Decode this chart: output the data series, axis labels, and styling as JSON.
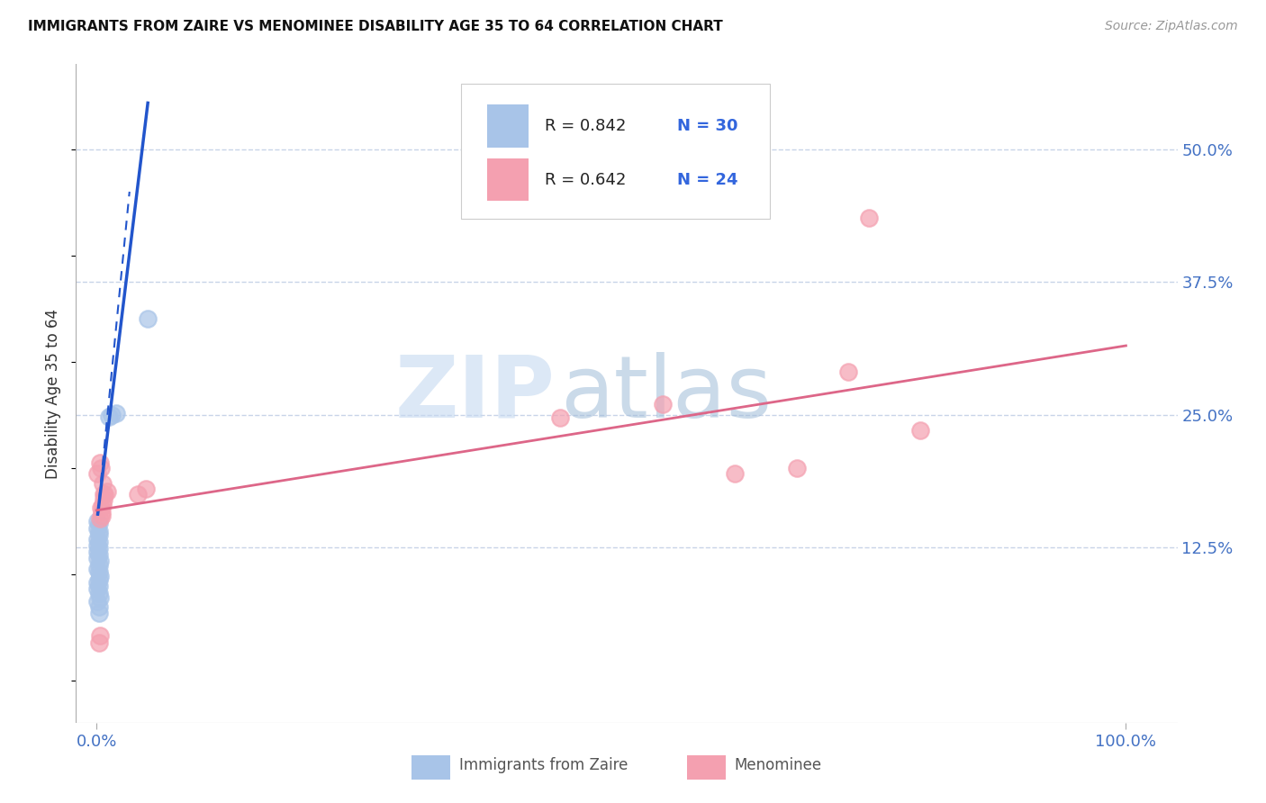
{
  "title": "IMMIGRANTS FROM ZAIRE VS MENOMINEE DISABILITY AGE 35 TO 64 CORRELATION CHART",
  "source": "Source: ZipAtlas.com",
  "ylabel": "Disability Age 35 to 64",
  "ytick_labels": [
    "12.5%",
    "25.0%",
    "37.5%",
    "50.0%"
  ],
  "ytick_values": [
    0.125,
    0.25,
    0.375,
    0.5
  ],
  "legend_blue_r": "R = 0.842",
  "legend_blue_n": "N = 30",
  "legend_pink_r": "R = 0.642",
  "legend_pink_n": "N = 24",
  "blue_color": "#a8c4e8",
  "pink_color": "#f4a0b0",
  "trendline_blue_color": "#2255cc",
  "trendline_pink_color": "#dd6688",
  "blue_scatter": [
    [
      0.001,
      0.15
    ],
    [
      0.002,
      0.148
    ],
    [
      0.001,
      0.143
    ],
    [
      0.002,
      0.14
    ],
    [
      0.002,
      0.137
    ],
    [
      0.001,
      0.133
    ],
    [
      0.002,
      0.13
    ],
    [
      0.001,
      0.127
    ],
    [
      0.002,
      0.124
    ],
    [
      0.001,
      0.121
    ],
    [
      0.002,
      0.118
    ],
    [
      0.001,
      0.115
    ],
    [
      0.003,
      0.112
    ],
    [
      0.002,
      0.108
    ],
    [
      0.001,
      0.105
    ],
    [
      0.002,
      0.102
    ],
    [
      0.003,
      0.098
    ],
    [
      0.002,
      0.095
    ],
    [
      0.001,
      0.092
    ],
    [
      0.002,
      0.089
    ],
    [
      0.001,
      0.086
    ],
    [
      0.002,
      0.082
    ],
    [
      0.003,
      0.078
    ],
    [
      0.001,
      0.074
    ],
    [
      0.002,
      0.069
    ],
    [
      0.002,
      0.063
    ],
    [
      0.015,
      0.25
    ],
    [
      0.019,
      0.251
    ],
    [
      0.012,
      0.248
    ],
    [
      0.05,
      0.34
    ]
  ],
  "pink_scatter": [
    [
      0.001,
      0.195
    ],
    [
      0.003,
      0.205
    ],
    [
      0.004,
      0.2
    ],
    [
      0.005,
      0.158
    ],
    [
      0.003,
      0.152
    ],
    [
      0.006,
      0.185
    ],
    [
      0.007,
      0.175
    ],
    [
      0.004,
      0.162
    ],
    [
      0.005,
      0.155
    ],
    [
      0.008,
      0.175
    ],
    [
      0.01,
      0.178
    ],
    [
      0.006,
      0.165
    ],
    [
      0.007,
      0.17
    ],
    [
      0.04,
      0.175
    ],
    [
      0.048,
      0.18
    ],
    [
      0.45,
      0.247
    ],
    [
      0.55,
      0.26
    ],
    [
      0.62,
      0.195
    ],
    [
      0.68,
      0.2
    ],
    [
      0.73,
      0.29
    ],
    [
      0.8,
      0.235
    ],
    [
      0.75,
      0.435
    ],
    [
      0.003,
      0.042
    ],
    [
      0.002,
      0.035
    ]
  ],
  "blue_trendline_solid": [
    [
      0.001,
      0.155
    ],
    [
      0.05,
      0.545
    ]
  ],
  "blue_trendline_dashed": [
    [
      0.001,
      0.155
    ],
    [
      0.032,
      0.46
    ]
  ],
  "pink_trendline": [
    [
      0.0,
      0.16
    ],
    [
      1.0,
      0.315
    ]
  ],
  "watermark_zip": "ZIP",
  "watermark_atlas": "atlas",
  "background_color": "#ffffff",
  "grid_color": "#c8d4e8",
  "xlim": [
    -0.02,
    1.05
  ],
  "ylim": [
    -0.04,
    0.58
  ]
}
